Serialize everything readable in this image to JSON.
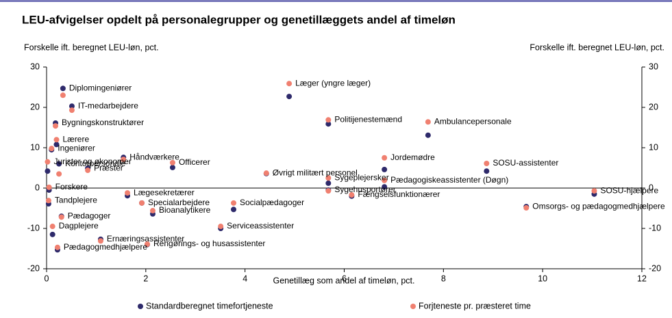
{
  "chart_data": {
    "type": "scatter",
    "title": "LEU-afvigelser opdelt på personalegrupper og genetillæggets andel af timeløn",
    "ylabel": "Forskelle ift. beregnet LEU-løn, pct.",
    "y2label": "Forskelle ift. beregnet LEU-løn, pct.",
    "xlabel": "Genetillæg som andel af timeløn, pct.",
    "xlim": [
      0,
      12
    ],
    "xticks": [
      0,
      2,
      4,
      6,
      8,
      10,
      12
    ],
    "ylim": [
      -20,
      30
    ],
    "yticks": [
      -20,
      -10,
      0,
      10,
      20,
      30
    ],
    "y2lim": [
      -20,
      30
    ],
    "y2ticks": [
      -20,
      -10,
      0,
      10,
      20,
      30
    ],
    "point_labels": [
      "Læger (yngre læger)",
      "Diplomingeniører",
      "IT-medarbejdere",
      "Politijenestemænd",
      "Ambulancepersonale",
      "Bygningskonstruktører",
      "Lærere",
      "Ingeniører",
      "Jurister og økonomer",
      "Håndværkere",
      "Officerer",
      "Kontorpersonale",
      "Præster",
      "Øvrigt militært personel",
      "Jordemødre",
      "SOSU-assistenter",
      "Sygeplejersker",
      "Forskere",
      "Pædagogiskeassistenter (Døgn)",
      "Sygehusportører",
      "Fængselsfunktionærer",
      "SOSU-hjælpere",
      "Lægesekretærer",
      "Tandplejere",
      "Specialarbejdere",
      "Socialpædagoger",
      "Bioanalytikere",
      "Omsorgs- og pædagogmedhjælpere",
      "Pædagoger",
      "Dagplejere",
      "Serviceassistenter",
      "Ernæringsassistenter",
      "Rengørings- og husassistenter",
      "Pædagogmedhjælpere"
    ],
    "x": [
      4.89,
      0.33,
      0.51,
      5.68,
      7.69,
      0.18,
      0.2,
      0.1,
      0.02,
      1.55,
      2.54,
      0.25,
      0.83,
      4.43,
      6.81,
      8.87,
      5.68,
      0.05,
      6.81,
      5.68,
      6.15,
      11.04,
      1.63,
      0.04,
      1.92,
      3.77,
      2.14,
      9.67,
      0.3,
      0.12,
      3.51,
      1.09,
      2.03,
      0.22
    ],
    "series": [
      {
        "name": "Standardberegnet timefortjeneste",
        "color": "#2e2a6b",
        "values": [
          22.7,
          24.7,
          20.3,
          15.9,
          13.1,
          16.1,
          10.8,
          9.5,
          4.2,
          7.6,
          5.1,
          6.0,
          4.9,
          3.6,
          4.6,
          4.2,
          1.2,
          -0.5,
          0.3,
          -0.5,
          -2.0,
          -1.5,
          -1.9,
          -3.9,
          -3.7,
          -5.3,
          -6.4,
          -4.6,
          -7.0,
          -11.5,
          -10.0,
          -12.7,
          -14.0,
          -15.3
        ]
      },
      {
        "name": "Forjteneste pr. præsteret time",
        "color": "#f08070",
        "values": [
          25.9,
          23.0,
          19.3,
          16.9,
          16.4,
          15.4,
          12.0,
          9.8,
          6.5,
          7.1,
          6.3,
          3.5,
          4.4,
          3.7,
          7.5,
          6.1,
          2.5,
          0.2,
          1.9,
          -0.7,
          -1.7,
          -0.7,
          -1.2,
          -3.1,
          -3.7,
          -3.7,
          -5.6,
          -4.9,
          -7.2,
          -9.5,
          -9.5,
          -13.1,
          -13.9,
          -14.7
        ]
      }
    ]
  }
}
